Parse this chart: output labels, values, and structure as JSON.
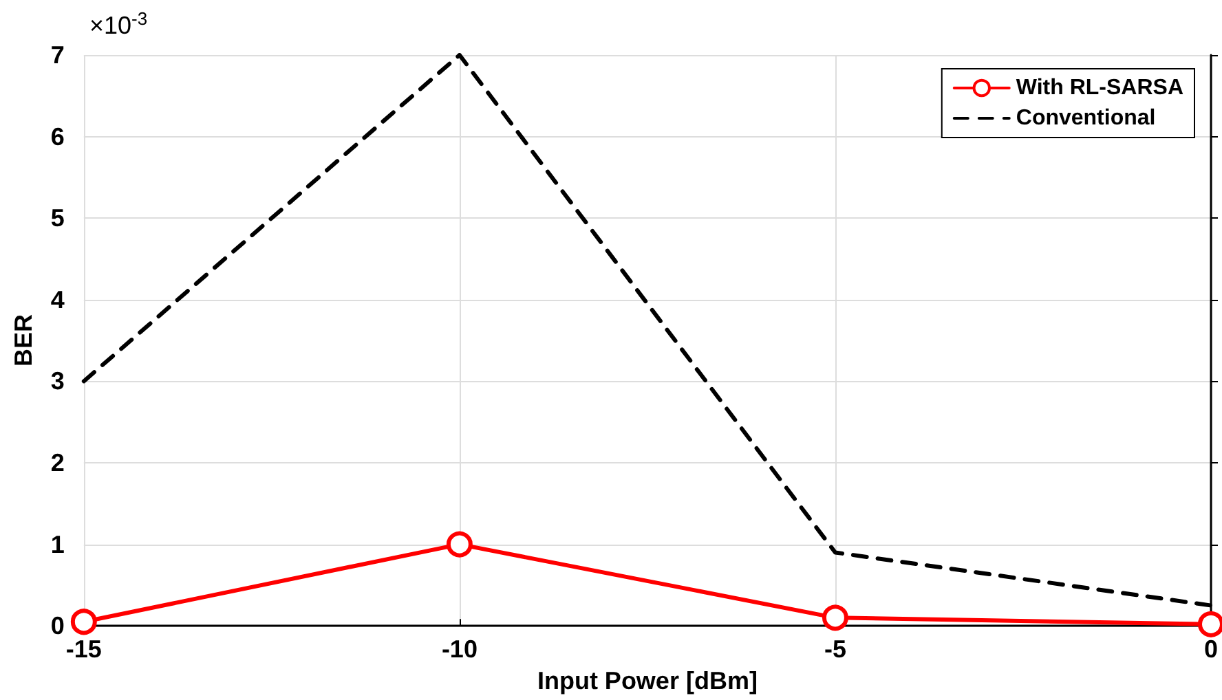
{
  "chart_data": {
    "type": "line",
    "xlabel": "Input Power [dBm]",
    "ylabel": "BER",
    "annotations": [
      "×10$^{-3}$"
    ],
    "x": [
      -15,
      -10,
      -5,
      0
    ],
    "series": [
      {
        "name": "With RL-SARSA",
        "color": "#ff0000",
        "values": [
          0.05,
          1.0,
          0.1,
          0.02
        ],
        "marker": "circle",
        "line_style": "solid"
      },
      {
        "name": "Conventional",
        "color": "#000000",
        "values": [
          3.0,
          7.0,
          0.9,
          0.25
        ],
        "marker": "none",
        "line_style": "dashed"
      }
    ],
    "xlim": [
      -15,
      0
    ],
    "xticks": [
      -15,
      -10,
      -5,
      0
    ],
    "ylim": [
      0,
      7
    ],
    "yticks": [
      0,
      1,
      2,
      3,
      4,
      5,
      6,
      7
    ],
    "grid": true,
    "legend": "top right"
  }
}
